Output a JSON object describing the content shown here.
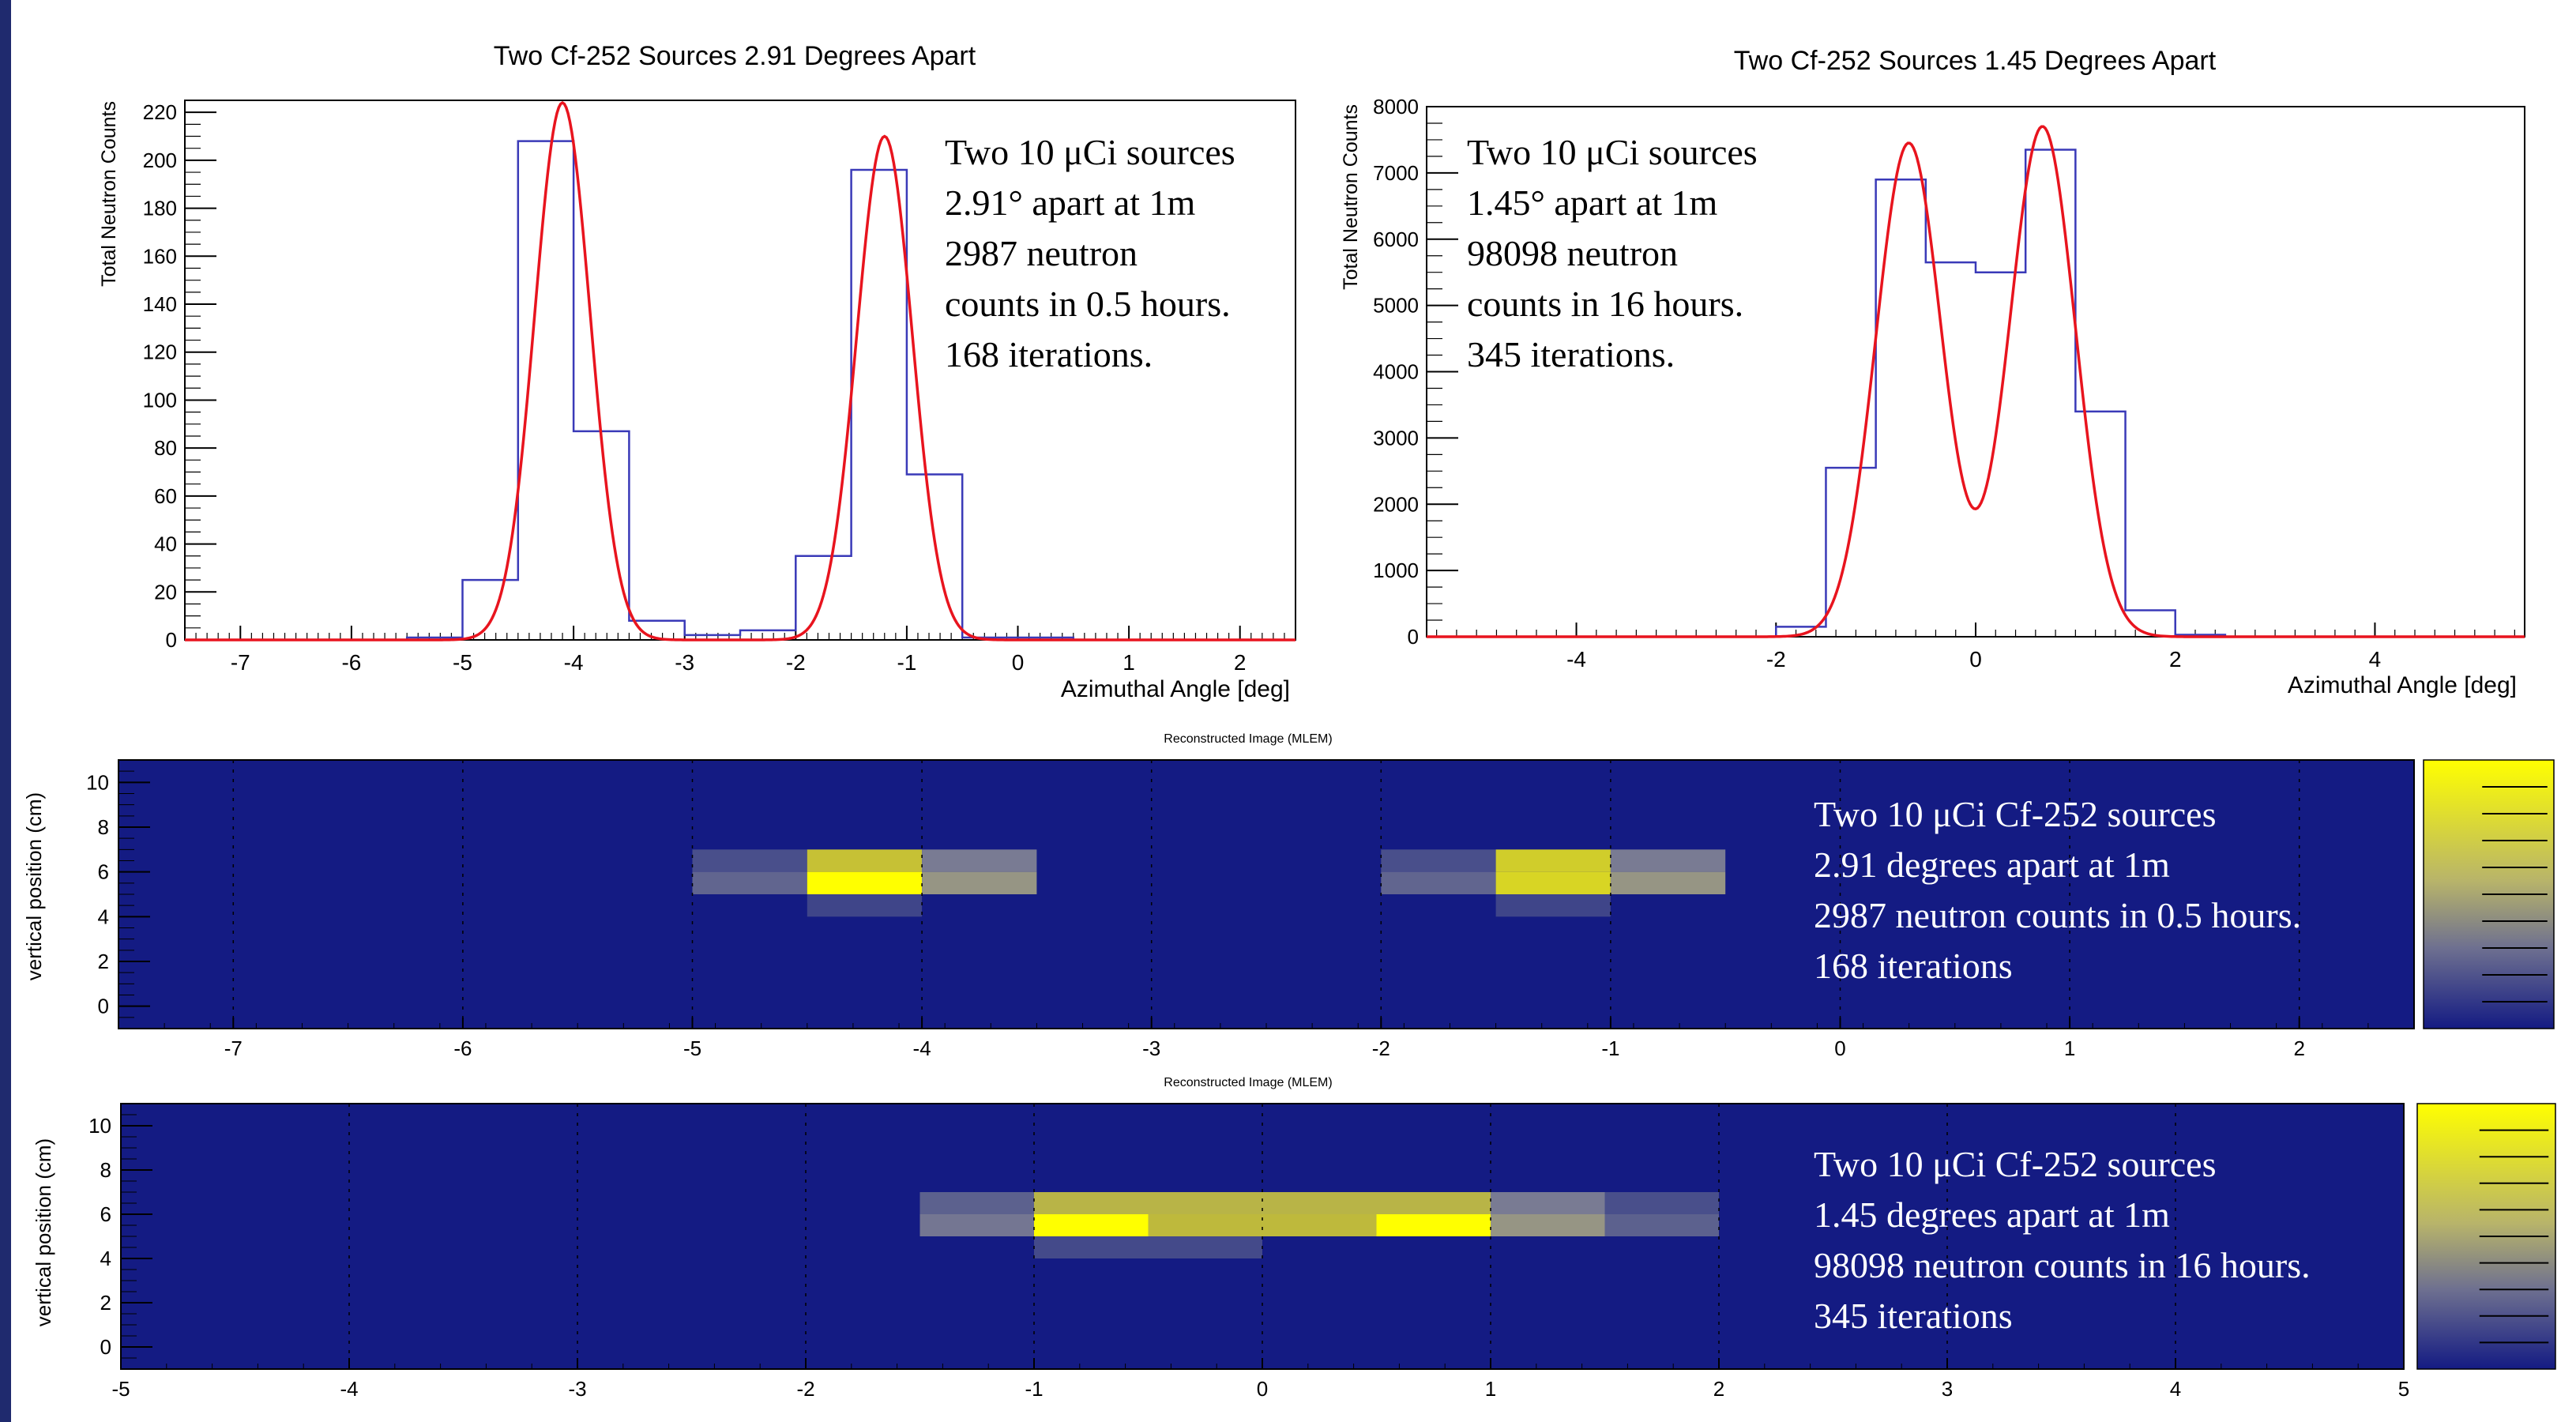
{
  "chart_data": [
    {
      "type": "line",
      "title": "Two Cf-252 Sources 2.91 Degrees Apart",
      "xlabel": "Azimuthal Angle [deg]",
      "ylabel": "Total Neutron Counts",
      "xlim": [
        -7.5,
        2.5
      ],
      "ylim": [
        0,
        225
      ],
      "x_ticks": [
        "-7",
        "-6",
        "-5",
        "-4",
        "-3",
        "-2",
        "-1",
        "0",
        "1",
        "2"
      ],
      "y_ticks": [
        "0",
        "20",
        "40",
        "60",
        "80",
        "100",
        "120",
        "140",
        "160",
        "180",
        "200",
        "220"
      ],
      "series": [
        {
          "kind": "histogram",
          "color": "#3a3ab8",
          "bin_edges": [
            -7.5,
            -7,
            -6.5,
            -6,
            -5.5,
            -5,
            -4.5,
            -4,
            -3.5,
            -3,
            -2.5,
            -2,
            -1.5,
            -1,
            -0.5,
            0,
            0.5,
            1,
            1.5,
            2,
            2.5
          ],
          "values": [
            0,
            0,
            0,
            0,
            1,
            25,
            208,
            87,
            8,
            2,
            4,
            35,
            196,
            69,
            1,
            1,
            0,
            0,
            0,
            0
          ]
        },
        {
          "kind": "fit",
          "color": "#e8141e",
          "peaks": [
            {
              "mean": -4.1,
              "sigma": 0.25,
              "amp": 224
            },
            {
              "mean": -1.2,
              "sigma": 0.25,
              "amp": 210
            }
          ]
        }
      ],
      "annotation": [
        "Two 10 μCi sources",
        "2.91° apart at 1m",
        "2987 neutron",
        "counts in 0.5 hours.",
        "168 iterations."
      ]
    },
    {
      "type": "line",
      "title": "Two Cf-252 Sources 1.45 Degrees Apart",
      "xlabel": "Azimuthal Angle [deg]",
      "ylabel": "Total Neutron Counts",
      "xlim": [
        -5.5,
        5.5
      ],
      "ylim": [
        0,
        8000
      ],
      "x_ticks": [
        "-4",
        "-2",
        "0",
        "2",
        "4"
      ],
      "y_ticks": [
        "0",
        "1000",
        "2000",
        "3000",
        "4000",
        "5000",
        "6000",
        "7000",
        "8000"
      ],
      "series": [
        {
          "kind": "histogram",
          "color": "#3a3ab8",
          "bin_edges": [
            -5.5,
            -5,
            -4.5,
            -4,
            -3.5,
            -3,
            -2.5,
            -2,
            -1.5,
            -1,
            -0.5,
            0,
            0.5,
            1,
            1.5,
            2,
            2.5,
            3,
            3.5,
            4,
            4.5,
            5,
            5.5
          ],
          "values": [
            0,
            0,
            0,
            0,
            0,
            0,
            0,
            150,
            2550,
            6900,
            5650,
            5500,
            7350,
            3400,
            400,
            30,
            0,
            0,
            0,
            0,
            0,
            0
          ]
        },
        {
          "kind": "fit",
          "color": "#e8141e",
          "peaks": [
            {
              "mean": -0.67,
              "sigma": 0.33,
              "amp": 7450
            },
            {
              "mean": 0.67,
              "sigma": 0.33,
              "amp": 7700
            }
          ]
        }
      ],
      "annotation": [
        "Two 10 μCi sources",
        "1.45° apart at 1m",
        "98098 neutron",
        "counts in 16 hours.",
        "345 iterations."
      ]
    },
    {
      "type": "heatmap",
      "title": "Reconstructed Image (MLEM)",
      "ylabel": "vertical position (cm)",
      "xlim": [
        -7.5,
        2.5
      ],
      "ylim": [
        -1,
        11
      ],
      "x_ticks": [
        "-7",
        "-6",
        "-5",
        "-4",
        "-3",
        "-2",
        "-1",
        "0",
        "1",
        "2"
      ],
      "y_ticks": [
        "0",
        "2",
        "4",
        "6",
        "8",
        "10"
      ],
      "background": "#141b83",
      "cells": [
        {
          "x0": -5,
          "x1": -4.5,
          "y0": 6,
          "y1": 7,
          "level": 0.22
        },
        {
          "x0": -5,
          "x1": -4.5,
          "y0": 5,
          "y1": 6,
          "level": 0.32
        },
        {
          "x0": -4.5,
          "x1": -4,
          "y0": 6,
          "y1": 7,
          "level": 0.78
        },
        {
          "x0": -4.5,
          "x1": -4,
          "y0": 5,
          "y1": 6,
          "level": 1.0
        },
        {
          "x0": -4.5,
          "x1": -4,
          "y0": 4,
          "y1": 5,
          "level": 0.18
        },
        {
          "x0": -4,
          "x1": -3.5,
          "y0": 6,
          "y1": 7,
          "level": 0.42
        },
        {
          "x0": -4,
          "x1": -3.5,
          "y0": 5,
          "y1": 6,
          "level": 0.55
        },
        {
          "x0": -2,
          "x1": -1.5,
          "y0": 6,
          "y1": 7,
          "level": 0.22
        },
        {
          "x0": -2,
          "x1": -1.5,
          "y0": 5,
          "y1": 6,
          "level": 0.32
        },
        {
          "x0": -1.5,
          "x1": -1,
          "y0": 6,
          "y1": 7,
          "level": 0.82
        },
        {
          "x0": -1.5,
          "x1": -1,
          "y0": 5,
          "y1": 6,
          "level": 0.85
        },
        {
          "x0": -1.5,
          "x1": -1,
          "y0": 4,
          "y1": 5,
          "level": 0.18
        },
        {
          "x0": -1,
          "x1": -0.5,
          "y0": 6,
          "y1": 7,
          "level": 0.42
        },
        {
          "x0": -1,
          "x1": -0.5,
          "y0": 5,
          "y1": 6,
          "level": 0.55
        }
      ],
      "annotation": [
        "Two 10 μCi Cf-252 sources",
        "2.91 degrees apart at 1m",
        "2987 neutron counts in 0.5 hours.",
        "168 iterations"
      ]
    },
    {
      "type": "heatmap",
      "title": "Reconstructed Image (MLEM)",
      "ylabel": "vertical position (cm)",
      "xlim": [
        -5,
        5
      ],
      "ylim": [
        -1,
        11
      ],
      "x_ticks": [
        "-5",
        "-4",
        "-3",
        "-2",
        "-1",
        "0",
        "1",
        "2",
        "3",
        "4",
        "5"
      ],
      "y_ticks": [
        "0",
        "2",
        "4",
        "6",
        "8",
        "10"
      ],
      "background": "#141b83",
      "cells": [
        {
          "x0": -1.5,
          "x1": -1,
          "y0": 6,
          "y1": 7,
          "level": 0.3
        },
        {
          "x0": -1.5,
          "x1": -1,
          "y0": 5,
          "y1": 6,
          "level": 0.4
        },
        {
          "x0": -1,
          "x1": -0.5,
          "y0": 6,
          "y1": 7,
          "level": 0.72
        },
        {
          "x0": -1,
          "x1": -0.5,
          "y0": 5,
          "y1": 6,
          "level": 1.0
        },
        {
          "x0": -1,
          "x1": -0.5,
          "y0": 4,
          "y1": 5,
          "level": 0.2
        },
        {
          "x0": -0.5,
          "x1": 0,
          "y0": 6,
          "y1": 7,
          "level": 0.72
        },
        {
          "x0": -0.5,
          "x1": 0,
          "y0": 5,
          "y1": 6,
          "level": 0.75
        },
        {
          "x0": -0.5,
          "x1": 0,
          "y0": 4,
          "y1": 5,
          "level": 0.2
        },
        {
          "x0": 0,
          "x1": 0.5,
          "y0": 6,
          "y1": 7,
          "level": 0.72
        },
        {
          "x0": 0,
          "x1": 0.5,
          "y0": 5,
          "y1": 6,
          "level": 0.75
        },
        {
          "x0": 0.5,
          "x1": 1,
          "y0": 6,
          "y1": 7,
          "level": 0.72
        },
        {
          "x0": 0.5,
          "x1": 1,
          "y0": 5,
          "y1": 6,
          "level": 1.0
        },
        {
          "x0": 1,
          "x1": 1.5,
          "y0": 6,
          "y1": 7,
          "level": 0.42
        },
        {
          "x0": 1,
          "x1": 1.5,
          "y0": 5,
          "y1": 6,
          "level": 0.55
        },
        {
          "x0": 1.5,
          "x1": 2,
          "y0": 6,
          "y1": 7,
          "level": 0.22
        },
        {
          "x0": 1.5,
          "x1": 2,
          "y0": 5,
          "y1": 6,
          "level": 0.3
        }
      ],
      "annotation": [
        "Two 10 μCi Cf-252 sources",
        "1.45 degrees apart at 1m",
        "98098 neutron counts in 16 hours.",
        "345 iterations"
      ]
    }
  ]
}
